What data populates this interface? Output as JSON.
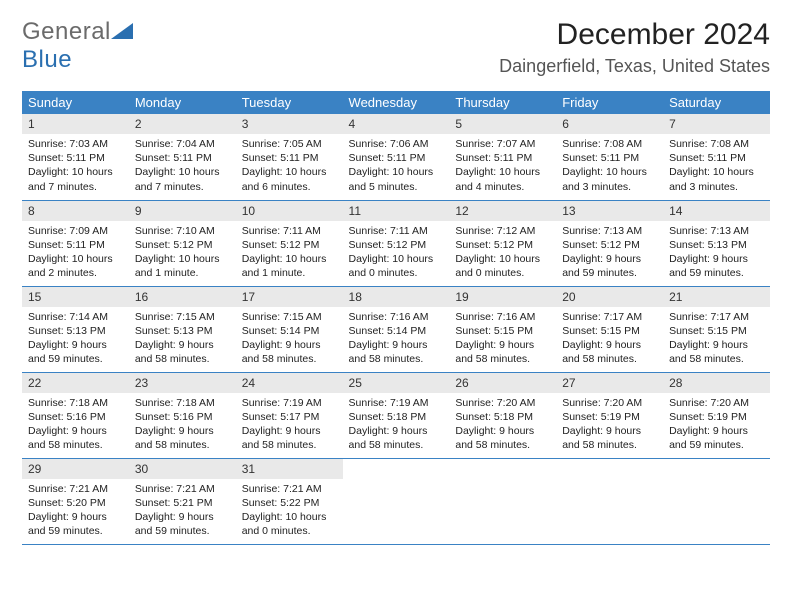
{
  "brand": {
    "part1": "General",
    "part2": "Blue"
  },
  "header": {
    "title": "December 2024",
    "location": "Daingerfield, Texas, United States"
  },
  "colors": {
    "header_bg": "#3a82c4",
    "header_text": "#ffffff",
    "daynum_bg": "#e9e9e9",
    "rule": "#3a82c4",
    "brand_gray": "#6b6b6b",
    "brand_blue": "#2a6fb0"
  },
  "daynames": [
    "Sunday",
    "Monday",
    "Tuesday",
    "Wednesday",
    "Thursday",
    "Friday",
    "Saturday"
  ],
  "weeks": [
    [
      {
        "n": "1",
        "sr": "Sunrise: 7:03 AM",
        "ss": "Sunset: 5:11 PM",
        "dl": "Daylight: 10 hours and 7 minutes."
      },
      {
        "n": "2",
        "sr": "Sunrise: 7:04 AM",
        "ss": "Sunset: 5:11 PM",
        "dl": "Daylight: 10 hours and 7 minutes."
      },
      {
        "n": "3",
        "sr": "Sunrise: 7:05 AM",
        "ss": "Sunset: 5:11 PM",
        "dl": "Daylight: 10 hours and 6 minutes."
      },
      {
        "n": "4",
        "sr": "Sunrise: 7:06 AM",
        "ss": "Sunset: 5:11 PM",
        "dl": "Daylight: 10 hours and 5 minutes."
      },
      {
        "n": "5",
        "sr": "Sunrise: 7:07 AM",
        "ss": "Sunset: 5:11 PM",
        "dl": "Daylight: 10 hours and 4 minutes."
      },
      {
        "n": "6",
        "sr": "Sunrise: 7:08 AM",
        "ss": "Sunset: 5:11 PM",
        "dl": "Daylight: 10 hours and 3 minutes."
      },
      {
        "n": "7",
        "sr": "Sunrise: 7:08 AM",
        "ss": "Sunset: 5:11 PM",
        "dl": "Daylight: 10 hours and 3 minutes."
      }
    ],
    [
      {
        "n": "8",
        "sr": "Sunrise: 7:09 AM",
        "ss": "Sunset: 5:11 PM",
        "dl": "Daylight: 10 hours and 2 minutes."
      },
      {
        "n": "9",
        "sr": "Sunrise: 7:10 AM",
        "ss": "Sunset: 5:12 PM",
        "dl": "Daylight: 10 hours and 1 minute."
      },
      {
        "n": "10",
        "sr": "Sunrise: 7:11 AM",
        "ss": "Sunset: 5:12 PM",
        "dl": "Daylight: 10 hours and 1 minute."
      },
      {
        "n": "11",
        "sr": "Sunrise: 7:11 AM",
        "ss": "Sunset: 5:12 PM",
        "dl": "Daylight: 10 hours and 0 minutes."
      },
      {
        "n": "12",
        "sr": "Sunrise: 7:12 AM",
        "ss": "Sunset: 5:12 PM",
        "dl": "Daylight: 10 hours and 0 minutes."
      },
      {
        "n": "13",
        "sr": "Sunrise: 7:13 AM",
        "ss": "Sunset: 5:12 PM",
        "dl": "Daylight: 9 hours and 59 minutes."
      },
      {
        "n": "14",
        "sr": "Sunrise: 7:13 AM",
        "ss": "Sunset: 5:13 PM",
        "dl": "Daylight: 9 hours and 59 minutes."
      }
    ],
    [
      {
        "n": "15",
        "sr": "Sunrise: 7:14 AM",
        "ss": "Sunset: 5:13 PM",
        "dl": "Daylight: 9 hours and 59 minutes."
      },
      {
        "n": "16",
        "sr": "Sunrise: 7:15 AM",
        "ss": "Sunset: 5:13 PM",
        "dl": "Daylight: 9 hours and 58 minutes."
      },
      {
        "n": "17",
        "sr": "Sunrise: 7:15 AM",
        "ss": "Sunset: 5:14 PM",
        "dl": "Daylight: 9 hours and 58 minutes."
      },
      {
        "n": "18",
        "sr": "Sunrise: 7:16 AM",
        "ss": "Sunset: 5:14 PM",
        "dl": "Daylight: 9 hours and 58 minutes."
      },
      {
        "n": "19",
        "sr": "Sunrise: 7:16 AM",
        "ss": "Sunset: 5:15 PM",
        "dl": "Daylight: 9 hours and 58 minutes."
      },
      {
        "n": "20",
        "sr": "Sunrise: 7:17 AM",
        "ss": "Sunset: 5:15 PM",
        "dl": "Daylight: 9 hours and 58 minutes."
      },
      {
        "n": "21",
        "sr": "Sunrise: 7:17 AM",
        "ss": "Sunset: 5:15 PM",
        "dl": "Daylight: 9 hours and 58 minutes."
      }
    ],
    [
      {
        "n": "22",
        "sr": "Sunrise: 7:18 AM",
        "ss": "Sunset: 5:16 PM",
        "dl": "Daylight: 9 hours and 58 minutes."
      },
      {
        "n": "23",
        "sr": "Sunrise: 7:18 AM",
        "ss": "Sunset: 5:16 PM",
        "dl": "Daylight: 9 hours and 58 minutes."
      },
      {
        "n": "24",
        "sr": "Sunrise: 7:19 AM",
        "ss": "Sunset: 5:17 PM",
        "dl": "Daylight: 9 hours and 58 minutes."
      },
      {
        "n": "25",
        "sr": "Sunrise: 7:19 AM",
        "ss": "Sunset: 5:18 PM",
        "dl": "Daylight: 9 hours and 58 minutes."
      },
      {
        "n": "26",
        "sr": "Sunrise: 7:20 AM",
        "ss": "Sunset: 5:18 PM",
        "dl": "Daylight: 9 hours and 58 minutes."
      },
      {
        "n": "27",
        "sr": "Sunrise: 7:20 AM",
        "ss": "Sunset: 5:19 PM",
        "dl": "Daylight: 9 hours and 58 minutes."
      },
      {
        "n": "28",
        "sr": "Sunrise: 7:20 AM",
        "ss": "Sunset: 5:19 PM",
        "dl": "Daylight: 9 hours and 59 minutes."
      }
    ],
    [
      {
        "n": "29",
        "sr": "Sunrise: 7:21 AM",
        "ss": "Sunset: 5:20 PM",
        "dl": "Daylight: 9 hours and 59 minutes."
      },
      {
        "n": "30",
        "sr": "Sunrise: 7:21 AM",
        "ss": "Sunset: 5:21 PM",
        "dl": "Daylight: 9 hours and 59 minutes."
      },
      {
        "n": "31",
        "sr": "Sunrise: 7:21 AM",
        "ss": "Sunset: 5:22 PM",
        "dl": "Daylight: 10 hours and 0 minutes."
      },
      null,
      null,
      null,
      null
    ]
  ]
}
